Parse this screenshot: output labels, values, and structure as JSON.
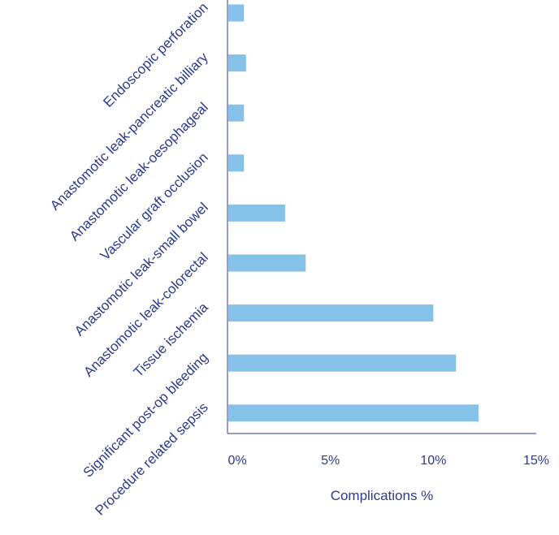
{
  "chart_data": {
    "type": "bar",
    "orientation": "horizontal",
    "categories": [
      "Endoscopic perforation",
      "Anastomotic leak-pancreatic billiary",
      "Anastomotic leak-oesophageal",
      "Vascular graft occlusion",
      "Anastomotic leak-small bowel",
      "Anastomotic leak-colorectal",
      "Tissue ischemia",
      "Significant post-op bleeding",
      "Procedure related sepsis"
    ],
    "values": [
      0.8,
      0.9,
      0.8,
      0.8,
      2.8,
      3.8,
      10.0,
      11.1,
      12.2
    ],
    "xlabel": "Complications %",
    "ylabel": "",
    "xlim": [
      0,
      15
    ],
    "xticks": [
      0,
      5,
      10,
      15
    ],
    "xtick_labels": [
      "0%",
      "5%",
      "10%",
      "15%"
    ],
    "bar_color": "#85c1e9",
    "axis_color": "#2b3a8f",
    "grid": false,
    "legend": "none"
  }
}
